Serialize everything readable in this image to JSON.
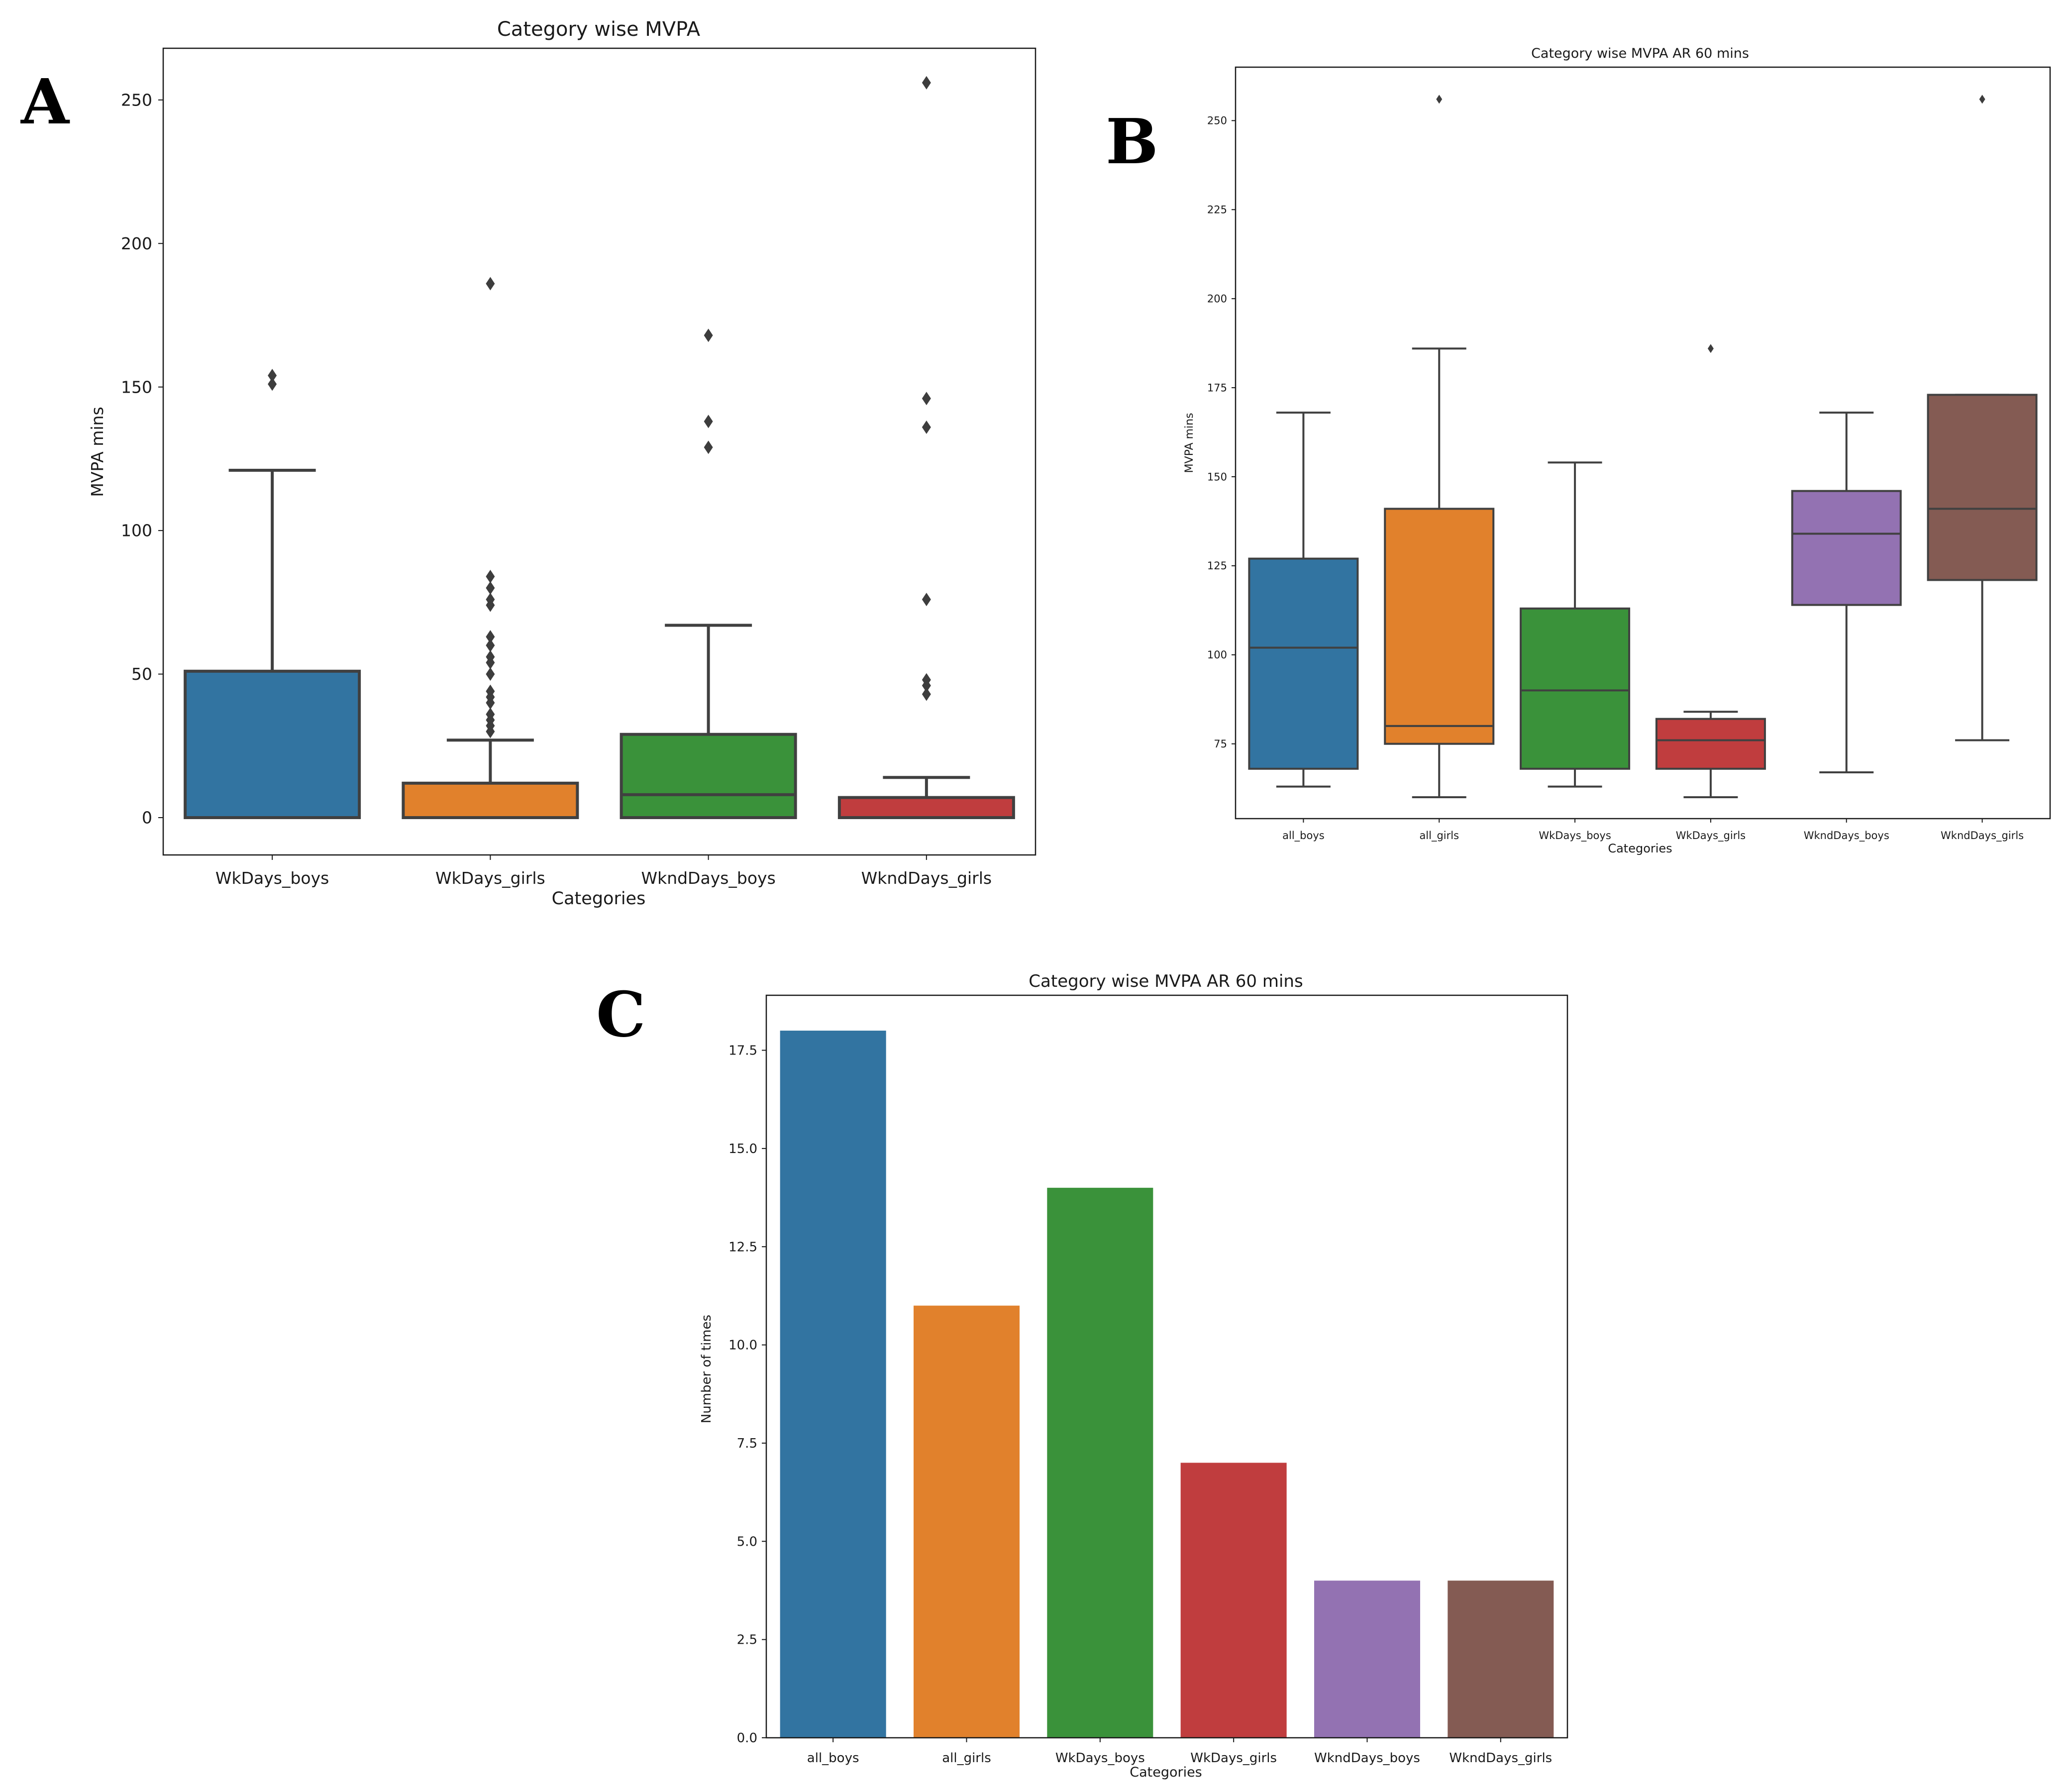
{
  "panels": [
    {
      "letter": "A"
    },
    {
      "letter": "B"
    },
    {
      "letter": "C"
    }
  ],
  "colors": {
    "blue": "#3274a1",
    "orange": "#e1812c",
    "green": "#3a923a",
    "red": "#c03d3e",
    "purple": "#9372b2",
    "brown": "#845b53",
    "line": "#404040",
    "axes": "#1a1a1a"
  },
  "chart_data": [
    {
      "type": "box",
      "title": "Category wise MVPA",
      "xlabel": "Categories",
      "ylabel": "MVPA mins",
      "ylim": [
        -13,
        268
      ],
      "yticks": [
        0,
        50,
        100,
        150,
        200,
        250
      ],
      "grid": false,
      "categories": [
        "WkDays_boys",
        "WkDays_girls",
        "WkndDays_boys",
        "WkndDays_girls"
      ],
      "colors": [
        "#3274a1",
        "#e1812c",
        "#3a923a",
        "#c03d3e"
      ],
      "boxes": [
        {
          "whisker_low": 0,
          "q1": 0,
          "median": 0,
          "q3": 51,
          "whisker_high": 121,
          "outliers": [
            151,
            154
          ]
        },
        {
          "whisker_low": 0,
          "q1": 0,
          "median": 0,
          "q3": 12,
          "whisker_high": 27,
          "outliers": [
            30,
            32,
            34,
            36,
            40,
            42,
            44,
            50,
            54,
            56,
            60,
            63,
            74,
            76,
            80,
            84,
            186
          ]
        },
        {
          "whisker_low": 0,
          "q1": 0,
          "median": 8,
          "q3": 29,
          "whisker_high": 67,
          "outliers": [
            129,
            138,
            168
          ]
        },
        {
          "whisker_low": 0,
          "q1": 0,
          "median": 0,
          "q3": 7,
          "whisker_high": 14,
          "outliers": [
            43,
            46,
            48,
            76,
            136,
            146,
            256
          ]
        }
      ]
    },
    {
      "type": "box",
      "title": "Category wise MVPA AR 60 mins",
      "xlabel": "Categories",
      "ylabel": "MVPA mins",
      "ylim": [
        54,
        265
      ],
      "yticks": [
        75,
        100,
        125,
        150,
        175,
        200,
        225,
        250
      ],
      "grid": false,
      "categories": [
        "all_boys",
        "all_girls",
        "WkDays_boys",
        "WkDays_girls",
        "WkndDays_boys",
        "WkndDays_girls"
      ],
      "colors": [
        "#3274a1",
        "#e1812c",
        "#3a923a",
        "#c03d3e",
        "#9372b2",
        "#845b53"
      ],
      "boxes": [
        {
          "whisker_low": 63,
          "q1": 68,
          "median": 102,
          "q3": 127,
          "whisker_high": 168,
          "outliers": []
        },
        {
          "whisker_low": 60,
          "q1": 75,
          "median": 80,
          "q3": 141,
          "whisker_high": 186,
          "outliers": [
            256
          ]
        },
        {
          "whisker_low": 63,
          "q1": 68,
          "median": 90,
          "q3": 113,
          "whisker_high": 154,
          "outliers": []
        },
        {
          "whisker_low": 60,
          "q1": 68,
          "median": 76,
          "q3": 82,
          "whisker_high": 84,
          "outliers": [
            186
          ]
        },
        {
          "whisker_low": 67,
          "q1": 114,
          "median": 134,
          "q3": 146,
          "whisker_high": 168,
          "outliers": []
        },
        {
          "whisker_low": 76,
          "q1": 121,
          "median": 141,
          "q3": 173,
          "whisker_high": 173,
          "outliers": [
            256
          ]
        }
      ]
    },
    {
      "type": "bar",
      "title": "Category wise MVPA AR 60 mins",
      "xlabel": "Categories",
      "ylabel": "Number of times",
      "ylim": [
        0,
        18.9
      ],
      "yticks": [
        "0.0",
        "2.5",
        "5.0",
        "7.5",
        "10.0",
        "12.5",
        "15.0",
        "17.5"
      ],
      "grid": false,
      "categories": [
        "all_boys",
        "all_girls",
        "WkDays_boys",
        "WkDays_girls",
        "WkndDays_boys",
        "WkndDays_girls"
      ],
      "colors": [
        "#3274a1",
        "#e1812c",
        "#3a923a",
        "#c03d3e",
        "#9372b2",
        "#845b53"
      ],
      "values": [
        18,
        11,
        14,
        7,
        4,
        4
      ]
    }
  ]
}
